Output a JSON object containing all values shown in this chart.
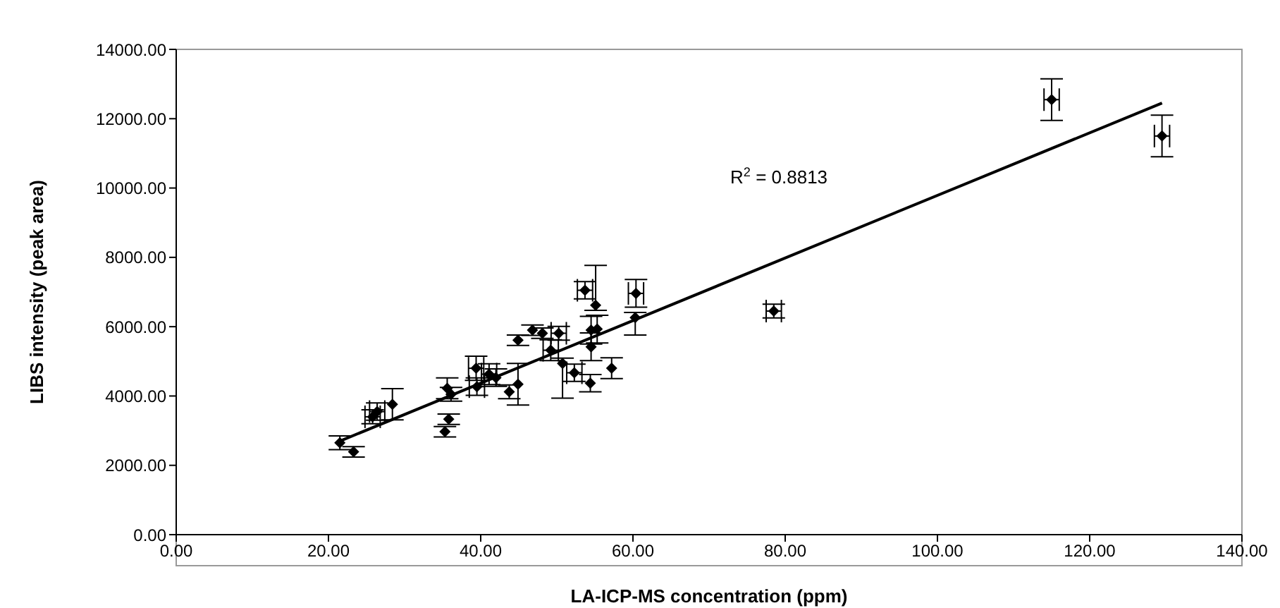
{
  "chart_data": {
    "type": "scatter",
    "xlabel": "LA-ICP-MS concentration (ppm)",
    "ylabel": "LIBS intensity (peak area)",
    "annotations": [
      "R$^{2}$ = 0.8813"
    ],
    "xlim": [
      0,
      140
    ],
    "xticks": [
      {
        "value": 0,
        "label": "0.00"
      },
      {
        "value": 20,
        "label": "20.00"
      },
      {
        "value": 40,
        "label": "40.00"
      },
      {
        "value": 60,
        "label": "60.00"
      },
      {
        "value": 80,
        "label": "80.00"
      },
      {
        "value": 100,
        "label": "100.00"
      },
      {
        "value": 120,
        "label": "120.00"
      },
      {
        "value": 140,
        "label": "140.00"
      }
    ],
    "ylim": [
      0,
      14000
    ],
    "yticks": [
      {
        "value": 0,
        "label": "0.00"
      },
      {
        "value": 2000,
        "label": "2000.00"
      },
      {
        "value": 4000,
        "label": "4000.00"
      },
      {
        "value": 6000,
        "label": "6000.00"
      },
      {
        "value": 8000,
        "label": "8000.00"
      },
      {
        "value": 10000,
        "label": "10000.00"
      },
      {
        "value": 12000,
        "label": "12000.00"
      },
      {
        "value": 14000,
        "label": "14000.00"
      }
    ],
    "grid": false,
    "marker": "diamond",
    "series": [
      {
        "color": "#000000",
        "x": [
          21.5,
          23.3,
          25.8,
          26.4,
          28.4,
          35.3,
          35.8,
          35.6,
          36.1,
          39.4,
          39.5,
          41.1,
          42.0,
          43.75,
          44.9,
          44.9,
          46.8,
          48.1,
          49.2,
          50.25,
          50.75,
          52.3,
          53.7,
          55.1,
          54.5,
          54.5,
          55.3,
          54.4,
          57.2,
          60.4,
          60.3,
          78.5,
          115,
          129.5
        ],
        "values": [
          2650,
          2390,
          3400,
          3550,
          3760,
          2970,
          3330,
          4220,
          4050,
          4800,
          4270,
          4630,
          4530,
          4120,
          4340,
          5610,
          5900,
          5810,
          5320,
          5810,
          4940,
          4670,
          7050,
          6620,
          5900,
          5420,
          5930,
          4370,
          4800,
          6960,
          6260,
          6450,
          12550,
          11500
        ],
        "errors": [
          200,
          150,
          200,
          250,
          450,
          150,
          150,
          300,
          200,
          350,
          250,
          300,
          250,
          200,
          600,
          150,
          150,
          150,
          300,
          200,
          [
            3940,
            5090
          ],
          250,
          250,
          [
            6470,
            7770
          ],
          400,
          400,
          400,
          250,
          300,
          400,
          [
            5760,
            6410
          ],
          200,
          600,
          600
        ],
        "xerrors": [
          null,
          null,
          1,
          1,
          null,
          null,
          null,
          null,
          null,
          1,
          1,
          1,
          null,
          null,
          null,
          null,
          null,
          null,
          1,
          1,
          null,
          1,
          1,
          null,
          null,
          null,
          null,
          null,
          null,
          1,
          null,
          1,
          1,
          1
        ]
      },
      {
        "type": "line",
        "color": "#000000",
        "marker": "none",
        "x": [
          21.5,
          129.5
        ],
        "values": [
          2700,
          12450
        ]
      }
    ]
  }
}
